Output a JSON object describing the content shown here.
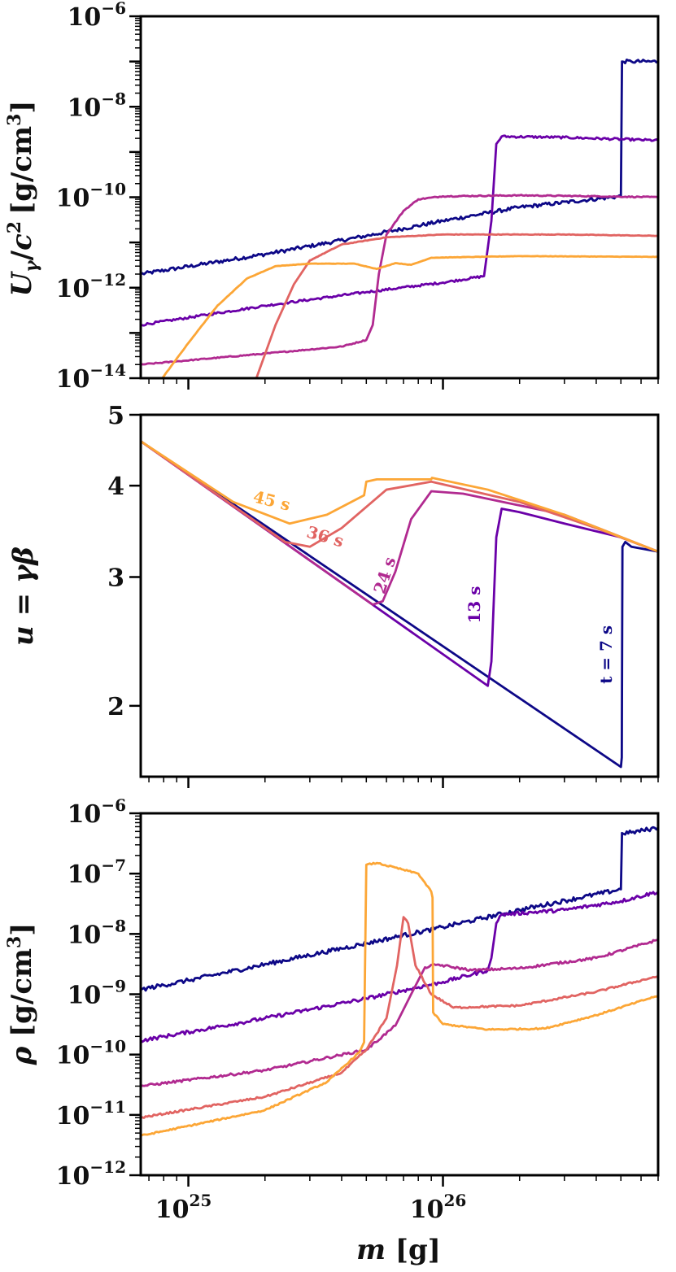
{
  "chart_data": [
    {
      "type": "line",
      "panel": "top",
      "ylabel": "U_γ / c² [g/cm³]",
      "ylabel_parts": {
        "main": "U",
        "sub": "γ",
        "slash": "/",
        "c": "c",
        "sup": "2",
        "units": "[g/cm",
        "units_sup": "3",
        "units_close": "]"
      },
      "yscale": "log",
      "ylim": [
        1e-14,
        1e-06
      ],
      "xlim": [
        6.5e+24,
        7e+26
      ],
      "y_ticks": [
        {
          "base": "10",
          "exp": "−6",
          "v": -6
        },
        {
          "base": "10",
          "exp": "−8",
          "v": -8
        },
        {
          "base": "10",
          "exp": "−10",
          "v": -10
        },
        {
          "base": "10",
          "exp": "−12",
          "v": -12
        },
        {
          "base": "10",
          "exp": "−14",
          "v": -14
        }
      ],
      "series": [
        {
          "name": "t = 7 s",
          "color": "#0d0887",
          "noise": 0.04,
          "points": [
            [
              6.5e+24,
              2e-12
            ],
            [
              2e+25,
              5.5e-12
            ],
            [
              5e+25,
              1.4e-11
            ],
            [
              1e+26,
              3e-11
            ],
            [
              2e+26,
              6e-11
            ],
            [
              5e+26,
              1.05e-10
            ],
            [
              5.05e+26,
              1e-07
            ],
            [
              5.5e+26,
              1e-07
            ],
            [
              7e+26,
              1e-07
            ]
          ]
        },
        {
          "name": "13 s",
          "color": "#6a00a8",
          "noise": 0.025,
          "points": [
            [
              6.5e+24,
              1.5e-13
            ],
            [
              2e+25,
              4e-13
            ],
            [
              5e+25,
              8e-13
            ],
            [
              1e+26,
              1.3e-12
            ],
            [
              1.45e+26,
              1.8e-12
            ],
            [
              1.55e+26,
              3e-11
            ],
            [
              1.62e+26,
              1.5e-09
            ],
            [
              1.7e+26,
              2.2e-09
            ],
            [
              3e+26,
              2.1e-09
            ],
            [
              7e+26,
              1.8e-09
            ]
          ]
        },
        {
          "name": "24 s",
          "color": "#b12a90",
          "noise": 0.012,
          "points": [
            [
              6.5e+24,
              2e-14
            ],
            [
              2e+25,
              3.5e-14
            ],
            [
              4e+25,
              5e-14
            ],
            [
              5e+25,
              7e-14
            ],
            [
              5.3e+25,
              1.5e-13
            ],
            [
              5.6e+25,
              2e-12
            ],
            [
              6e+25,
              1.5e-11
            ],
            [
              7e+25,
              5e-11
            ],
            [
              8e+25,
              9e-11
            ],
            [
              1e+26,
              1.05e-10
            ],
            [
              2e+26,
              1.1e-10
            ],
            [
              4e+26,
              1.05e-10
            ],
            [
              7e+26,
              1e-10
            ]
          ]
        },
        {
          "name": "36 s",
          "color": "#e16462",
          "noise": 0.006,
          "points": [
            [
              1.85e+25,
              1e-14
            ],
            [
              2.2e+25,
              1.5e-13
            ],
            [
              2.6e+25,
              1.2e-12
            ],
            [
              3e+25,
              4e-12
            ],
            [
              4e+25,
              9e-12
            ],
            [
              6e+25,
              1.3e-11
            ],
            [
              1e+26,
              1.5e-11
            ],
            [
              3e+26,
              1.5e-11
            ],
            [
              7e+26,
              1.4e-11
            ]
          ]
        },
        {
          "name": "45 s",
          "color": "#fca636",
          "noise": 0.004,
          "points": [
            [
              7.9e+24,
              1e-14
            ],
            [
              1e+25,
              6e-14
            ],
            [
              1.3e+25,
              4e-13
            ],
            [
              1.7e+25,
              1.6e-12
            ],
            [
              2.2e+25,
              3e-12
            ],
            [
              3e+25,
              3.4e-12
            ],
            [
              4.5e+25,
              3.4e-12
            ],
            [
              5.5e+25,
              2.6e-12
            ],
            [
              6.5e+25,
              3.5e-12
            ],
            [
              7.5e+25,
              3.2e-12
            ],
            [
              9e+25,
              4.6e-12
            ],
            [
              2e+26,
              5e-12
            ],
            [
              7e+26,
              4.8e-12
            ]
          ]
        }
      ]
    },
    {
      "type": "line",
      "panel": "middle",
      "ylabel": "u = γβ",
      "ylabel_parts": {
        "u": "u",
        "eq": " = ",
        "gb": "γβ"
      },
      "yscale": "log",
      "ylim": [
        1.6,
        5
      ],
      "xlim": [
        6.5e+24,
        7e+26
      ],
      "y_ticks": [
        {
          "label": "5",
          "v": 5
        },
        {
          "label": "4",
          "v": 4
        },
        {
          "label": "3",
          "v": 3
        },
        {
          "label": "2",
          "v": 2
        }
      ],
      "series": [
        {
          "name": "t = 7 s",
          "color": "#0d0887",
          "points": [
            [
              6.5e+24,
              4.6
            ],
            [
              5e+26,
              1.65
            ],
            [
              5.04e+26,
              1.7
            ],
            [
              5.07e+26,
              3.3
            ],
            [
              5.2e+26,
              3.35
            ],
            [
              5.5e+26,
              3.3
            ],
            [
              7e+26,
              3.25
            ]
          ]
        },
        {
          "name": "13 s",
          "color": "#6a00a8",
          "points": [
            [
              6.5e+24,
              4.6
            ],
            [
              1.5e+26,
              2.13
            ],
            [
              1.55e+26,
              2.3
            ],
            [
              1.62e+26,
              3.4
            ],
            [
              1.7e+26,
              3.72
            ],
            [
              2e+26,
              3.68
            ],
            [
              3e+26,
              3.55
            ],
            [
              5e+26,
              3.4
            ],
            [
              7e+26,
              3.25
            ]
          ]
        },
        {
          "name": "24 s",
          "color": "#b12a90",
          "points": [
            [
              6.5e+24,
              4.6
            ],
            [
              5.3e+25,
              2.75
            ],
            [
              5.8e+25,
              2.78
            ],
            [
              6.5e+25,
              3.05
            ],
            [
              7.5e+25,
              3.6
            ],
            [
              9e+25,
              3.93
            ],
            [
              1.2e+26,
              3.9
            ],
            [
              3e+26,
              3.65
            ],
            [
              7e+26,
              3.25
            ]
          ]
        },
        {
          "name": "36 s",
          "color": "#e16462",
          "points": [
            [
              6.5e+24,
              4.6
            ],
            [
              2.4e+25,
              3.35
            ],
            [
              3e+25,
              3.3
            ],
            [
              4e+25,
              3.5
            ],
            [
              6e+25,
              3.95
            ],
            [
              9e+25,
              4.05
            ],
            [
              2e+26,
              3.8
            ],
            [
              4e+26,
              3.5
            ],
            [
              7e+26,
              3.25
            ]
          ]
        },
        {
          "name": "45 s",
          "color": "#fca636",
          "points": [
            [
              6.5e+24,
              4.6
            ],
            [
              1.5e+25,
              3.8
            ],
            [
              2.5e+25,
              3.55
            ],
            [
              3.5e+25,
              3.65
            ],
            [
              4.9e+25,
              3.88
            ],
            [
              5e+25,
              4.05
            ],
            [
              5.5e+25,
              4.08
            ],
            [
              9e+25,
              4.08
            ],
            [
              9.05e+25,
              4.1
            ],
            [
              1.5e+26,
              3.95
            ],
            [
              3e+26,
              3.65
            ],
            [
              7e+26,
              3.25
            ]
          ]
        }
      ],
      "annotations": [
        {
          "text": "45 s",
          "series": "45 s",
          "x": 2.1e+25,
          "y": 3.75,
          "rotate": 14
        },
        {
          "text": "36 s",
          "series": "36 s",
          "x": 3.4e+25,
          "y": 3.35,
          "rotate": 16
        },
        {
          "text": "24 s",
          "series": "24 s",
          "x": 6.2e+25,
          "y": 3.0,
          "rotate": -72
        },
        {
          "text": "13 s",
          "series": "13 s",
          "x": 1.4e+26,
          "y": 2.75,
          "rotate": -90
        },
        {
          "text": "t = 7 s",
          "series": "t = 7 s",
          "x": 4.6e+26,
          "y": 2.35,
          "rotate": -90
        }
      ]
    },
    {
      "type": "line",
      "panel": "bottom",
      "ylabel": "ρ [g/cm³]",
      "ylabel_parts": {
        "rho": "ρ",
        "units": " [g/cm",
        "units_sup": "3",
        "units_close": "]"
      },
      "yscale": "log",
      "ylim": [
        1e-12,
        1e-06
      ],
      "xlim": [
        6.5e+24,
        7e+26
      ],
      "xlabel": "m [g]",
      "xlabel_parts": {
        "m": "m",
        "units": " [g]"
      },
      "x_ticks": [
        {
          "base": "10",
          "exp": "25",
          "v": 25
        },
        {
          "base": "10",
          "exp": "26",
          "v": 26
        }
      ],
      "y_ticks": [
        {
          "base": "10",
          "exp": "−6",
          "v": -6
        },
        {
          "base": "10",
          "exp": "−7",
          "v": -7
        },
        {
          "base": "10",
          "exp": "−8",
          "v": -8
        },
        {
          "base": "10",
          "exp": "−9",
          "v": -9
        },
        {
          "base": "10",
          "exp": "−10",
          "v": -10
        },
        {
          "base": "10",
          "exp": "−11",
          "v": -11
        },
        {
          "base": "10",
          "exp": "−12",
          "v": -12
        }
      ],
      "series": [
        {
          "name": "t = 7 s",
          "color": "#0d0887",
          "noise": 0.035,
          "points": [
            [
              6.5e+24,
              1.2e-09
            ],
            [
              1e+25,
              1.7e-09
            ],
            [
              5e+25,
              7e-09
            ],
            [
              1e+26,
              1.3e-08
            ],
            [
              2e+26,
              2.5e-08
            ],
            [
              5e+26,
              5.5e-08
            ],
            [
              5.05e+26,
              4.7e-07
            ],
            [
              5.5e+26,
              4.8e-07
            ],
            [
              7e+26,
              5.8e-07
            ]
          ]
        },
        {
          "name": "13 s",
          "color": "#6a00a8",
          "noise": 0.03,
          "points": [
            [
              6.5e+24,
              1.7e-10
            ],
            [
              2e+25,
              4e-10
            ],
            [
              5e+25,
              8.5e-10
            ],
            [
              1e+26,
              1.6e-09
            ],
            [
              1.5e+26,
              2.5e-09
            ],
            [
              1.55e+26,
              4e-09
            ],
            [
              1.62e+26,
              1.5e-08
            ],
            [
              1.7e+26,
              2.1e-08
            ],
            [
              3e+26,
              2.5e-08
            ],
            [
              5e+26,
              3.5e-08
            ],
            [
              7e+26,
              5e-08
            ]
          ]
        },
        {
          "name": "24 s",
          "color": "#b12a90",
          "noise": 0.02,
          "points": [
            [
              6.5e+24,
              3e-11
            ],
            [
              2e+25,
              5.5e-11
            ],
            [
              5e+25,
              1.2e-10
            ],
            [
              6.5e+25,
              3e-10
            ],
            [
              7.5e+25,
              1e-09
            ],
            [
              8.5e+25,
              2.8e-09
            ],
            [
              9.5e+25,
              3.1e-09
            ],
            [
              1.1e+26,
              2.8e-09
            ],
            [
              1.3e+26,
              2.5e-09
            ],
            [
              2e+26,
              2.7e-09
            ],
            [
              4e+26,
              4e-09
            ],
            [
              7e+26,
              8e-09
            ]
          ]
        },
        {
          "name": "36 s",
          "color": "#e16462",
          "noise": 0.015,
          "points": [
            [
              6.5e+24,
              9e-12
            ],
            [
              2e+25,
              2e-11
            ],
            [
              4e+25,
              5e-11
            ],
            [
              5e+25,
              1.2e-10
            ],
            [
              6e+25,
              4e-10
            ],
            [
              6.6e+25,
              3e-09
            ],
            [
              7e+25,
              1.9e-08
            ],
            [
              7.3e+25,
              1.5e-08
            ],
            [
              7.8e+25,
              3e-09
            ],
            [
              9e+25,
              1e-09
            ],
            [
              1.1e+26,
              6e-10
            ],
            [
              2e+26,
              6.5e-10
            ],
            [
              4e+26,
              1.1e-09
            ],
            [
              7e+26,
              2e-09
            ]
          ]
        },
        {
          "name": "45 s",
          "color": "#fca636",
          "noise": 0.012,
          "points": [
            [
              6.5e+24,
              4.5e-12
            ],
            [
              2e+25,
              1.2e-11
            ],
            [
              3.5e+25,
              3.5e-11
            ],
            [
              4.7e+25,
              1.1e-10
            ],
            [
              4.9e+25,
              1.6e-10
            ],
            [
              5e+25,
              1.4e-07
            ],
            [
              5.5e+25,
              1.5e-07
            ],
            [
              8e+25,
              1e-07
            ],
            [
              9e+25,
              5e-08
            ],
            [
              9.1e+25,
              4e-08
            ],
            [
              9.15e+25,
              5e-10
            ],
            [
              1e+26,
              3.2e-10
            ],
            [
              1.5e+26,
              2.6e-10
            ],
            [
              2.5e+26,
              2.7e-10
            ],
            [
              4e+26,
              4.5e-10
            ],
            [
              7e+26,
              9.5e-10
            ]
          ]
        }
      ]
    }
  ]
}
